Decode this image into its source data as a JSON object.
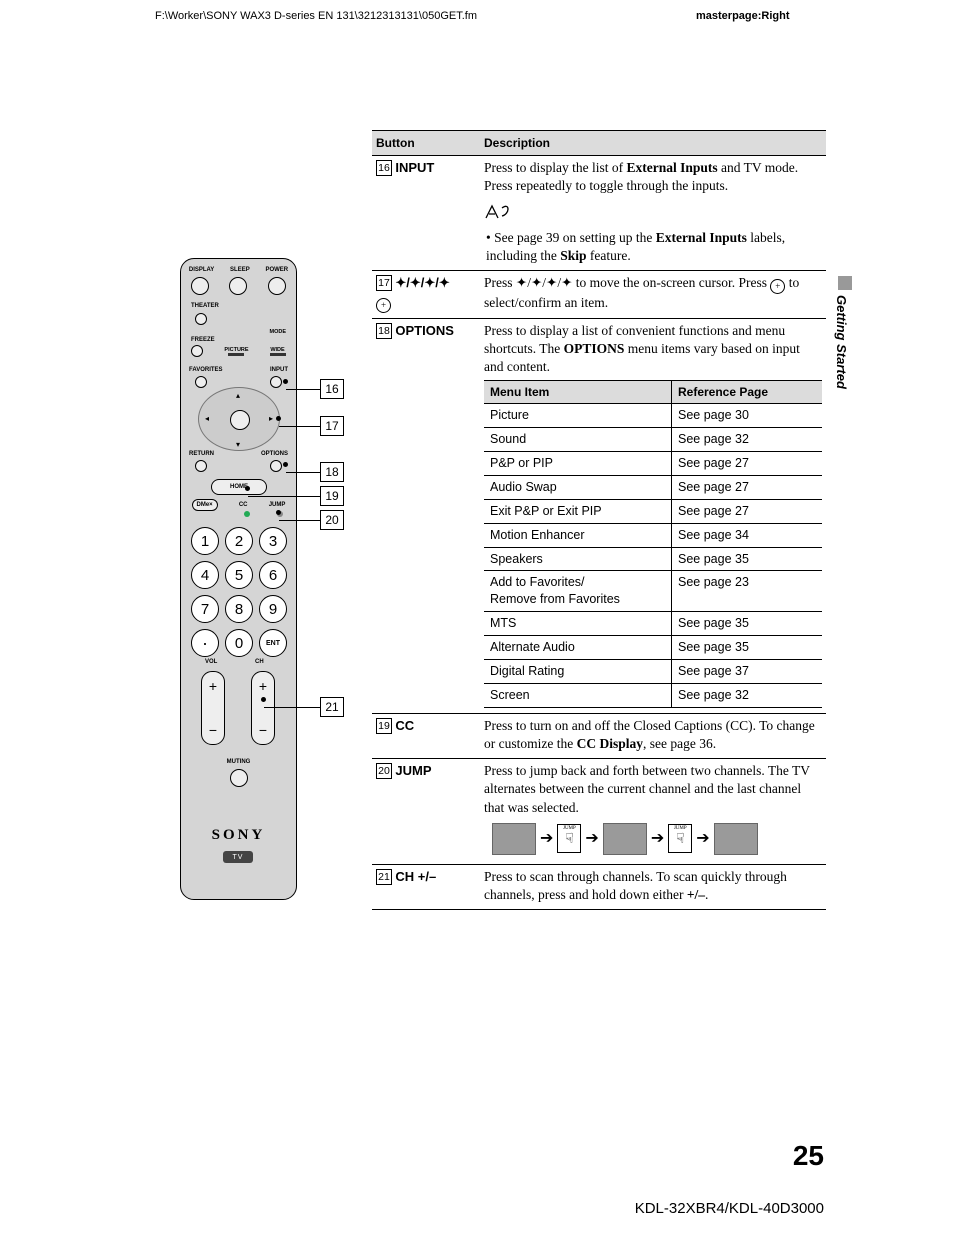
{
  "header": {
    "file_path": "F:\\Worker\\SONY WAX3 D-series EN 131\\3212313131\\050GET.fm",
    "masterpage": "masterpage:Right"
  },
  "side_tab": "Getting Started",
  "page_number": "25",
  "footer_model": "KDL-32XBR4/KDL-40D3000",
  "table_headers": {
    "button": "Button",
    "description": "Description"
  },
  "callouts": [
    "16",
    "17",
    "18",
    "19",
    "20",
    "21"
  ],
  "rows": {
    "r16": {
      "num": "16",
      "name": "INPUT",
      "desc1a": "Press to display the list of ",
      "desc1b": "External Inputs",
      "desc1c": " and TV mode. Press repeatedly to toggle through the inputs.",
      "tip1a": "See page 39 on setting up the ",
      "tip1b": "External Inputs",
      "tip1c": " labels, including the ",
      "tip1d": "Skip",
      "tip1e": " feature."
    },
    "r17": {
      "num": "17",
      "name": "✦/✦/✦/✦",
      "sub": "⊕",
      "desc": "Press ✦/✦/✦/✦ to move the on-screen cursor. Press ⊕ to select/confirm an item."
    },
    "r18": {
      "num": "18",
      "name": "OPTIONS",
      "desc1a": "Press to display a list of convenient functions and menu shortcuts. The ",
      "desc1b": "OPTIONS",
      "desc1c": " menu items vary based on input and content."
    },
    "r19": {
      "num": "19",
      "name": "CC",
      "desc1a": "Press to turn on and off the Closed Captions (CC). To change or customize the ",
      "desc1b": "CC Display",
      "desc1c": ", see page 36."
    },
    "r20": {
      "num": "20",
      "name": "JUMP",
      "desc": "Press to jump back and forth between two channels. The TV alternates between the current channel and the last channel that was selected.",
      "jump_label": "JUMP"
    },
    "r21": {
      "num": "21",
      "name": "CH +/–",
      "desc1a": "Press to scan through channels. To scan quickly through channels, press and hold down either ",
      "desc1b": "+/–",
      "desc1c": "."
    }
  },
  "subtable": {
    "head1": "Menu Item",
    "head2": "Reference Page",
    "items": [
      {
        "name": "Picture",
        "ref": "See page 30"
      },
      {
        "name": "Sound",
        "ref": "See page 32"
      },
      {
        "name": "P&P or PIP",
        "ref": "See page 27"
      },
      {
        "name": "Audio Swap",
        "ref": "See page 27"
      },
      {
        "name": "Exit P&P or Exit PIP",
        "ref": "See page 27"
      },
      {
        "name": "Motion Enhancer",
        "ref": "See page 34"
      },
      {
        "name": "Speakers",
        "ref": "See page 35"
      },
      {
        "name": "Add to Favorites/\nRemove from Favorites",
        "ref": "See page 23"
      },
      {
        "name": "MTS",
        "ref": "See page 35"
      },
      {
        "name": "Alternate Audio",
        "ref": "See page 35"
      },
      {
        "name": "Digital Rating",
        "ref": "See page 37"
      },
      {
        "name": "Screen",
        "ref": "See page 32"
      }
    ]
  },
  "remote": {
    "top_labels": [
      "DISPLAY",
      "SLEEP",
      "POWER"
    ],
    "r2": "THEATER",
    "freeze": "FREEZE",
    "mode": "MODE",
    "picture": "PICTURE",
    "wide": "WIDE",
    "favorites": "FAVORITES",
    "input": "INPUT",
    "return": "RETURN",
    "options": "OPTIONS",
    "home": "HOME",
    "dme": "DMe×",
    "cc": "CC",
    "jump": "JUMP",
    "numbers": [
      "1",
      "2",
      "3",
      "4",
      "5",
      "6",
      "7",
      "8",
      "9",
      "·",
      "0",
      "ENT"
    ],
    "vol": "VOL",
    "ch": "CH",
    "muting": "MUTING",
    "brand": "SONY",
    "tv": "TV"
  }
}
